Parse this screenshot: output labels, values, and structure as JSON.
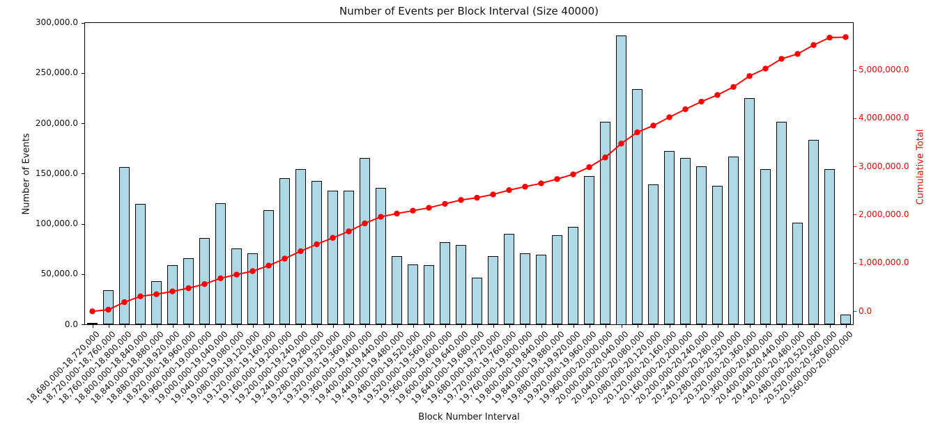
{
  "chart_data": {
    "type": "combo-bar-line",
    "title": "Number of Events per Block Interval (Size 40000)",
    "xlabel": "Block Number Interval",
    "grid": false,
    "legend": "none",
    "colors": {
      "bar_fill": "#add8e6",
      "bar_edge": "#000000",
      "line": "#ff0000",
      "right_axis_text": "#ff0000",
      "left_axis_text": "#111111"
    },
    "categories": [
      "18,680,000-18,720,000",
      "18,720,000-18,760,000",
      "18,760,000-18,800,000",
      "18,800,000-18,840,000",
      "18,840,000-18,880,000",
      "18,880,000-18,920,000",
      "18,920,000-18,960,000",
      "18,960,000-19,000,000",
      "19,000,000-19,040,000",
      "19,040,000-19,080,000",
      "19,080,000-19,120,000",
      "19,120,000-19,160,000",
      "19,160,000-19,200,000",
      "19,200,000-19,240,000",
      "19,240,000-19,280,000",
      "19,280,000-19,320,000",
      "19,320,000-19,360,000",
      "19,360,000-19,400,000",
      "19,400,000-19,440,000",
      "19,440,000-19,480,000",
      "19,480,000-19,520,000",
      "19,520,000-19,560,000",
      "19,560,000-19,600,000",
      "19,600,000-19,640,000",
      "19,640,000-19,680,000",
      "19,680,000-19,720,000",
      "19,720,000-19,760,000",
      "19,760,000-19,800,000",
      "19,800,000-19,840,000",
      "19,840,000-19,880,000",
      "19,880,000-19,920,000",
      "19,920,000-19,960,000",
      "19,960,000-20,000,000",
      "20,000,000-20,040,000",
      "20,040,000-20,080,000",
      "20,080,000-20,120,000",
      "20,120,000-20,160,000",
      "20,160,000-20,200,000",
      "20,200,000-20,240,000",
      "20,240,000-20,280,000",
      "20,280,000-20,320,000",
      "20,320,000-20,360,000",
      "20,360,000-20,400,000",
      "20,400,000-20,440,000",
      "20,440,000-20,480,000",
      "20,480,000-20,520,000",
      "20,520,000-20,560,000",
      "20,560,000-20,600,000"
    ],
    "series": [
      {
        "name": "Number of Events",
        "type": "bar",
        "color": "#add8e6",
        "values": [
          2000,
          34000,
          157000,
          120000,
          43500,
          59000,
          66000,
          86000,
          121000,
          76000,
          71000,
          114000,
          145500,
          154500,
          143000,
          133500,
          133500,
          166000,
          136000,
          68000,
          60000,
          59500,
          82000,
          79500,
          47000,
          68000,
          90000,
          71000,
          69500,
          89000,
          97500,
          148000,
          202000,
          287500,
          234000,
          139500,
          173000,
          166000,
          157500,
          138000,
          167000,
          225500,
          155000,
          202000,
          101500,
          184000,
          155000,
          10000
        ]
      },
      {
        "name": "Cumulative Total",
        "type": "line",
        "color": "#ff0000",
        "marker": "circle",
        "values": [
          2000,
          36000,
          193000,
          313000,
          356500,
          415500,
          481500,
          567500,
          688500,
          764500,
          835500,
          949500,
          1095000,
          1249500,
          1392500,
          1526000,
          1659500,
          1825500,
          1961500,
          2029500,
          2089500,
          2149000,
          2231000,
          2310500,
          2357500,
          2425500,
          2515500,
          2586500,
          2656000,
          2745000,
          2842500,
          2990500,
          3192500,
          3480000,
          3714000,
          3853500,
          4026500,
          4192500,
          4350000,
          4488000,
          4655000,
          4880500,
          5035500,
          5237500,
          5339000,
          5523000,
          5678000,
          5688000
        ]
      }
    ],
    "left_axis": {
      "label": "Number of Events",
      "range": [
        0,
        300000
      ],
      "tick_values": [
        0,
        50000,
        100000,
        150000,
        200000,
        250000,
        300000
      ],
      "tick_labels": [
        "0.0",
        "50,000.0",
        "100,000.0",
        "150,000.0",
        "200,000.0",
        "250,000.0",
        "300,000.0"
      ]
    },
    "right_axis": {
      "label": "Cumulative Total",
      "tick_values": [
        0,
        1000000,
        2000000,
        3000000,
        4000000,
        5000000
      ],
      "tick_labels": [
        "0.0",
        "1,000,000.0",
        "2,000,000.0",
        "3,000,000.0",
        "4,000,000.0",
        "5,000,000.0"
      ]
    }
  }
}
